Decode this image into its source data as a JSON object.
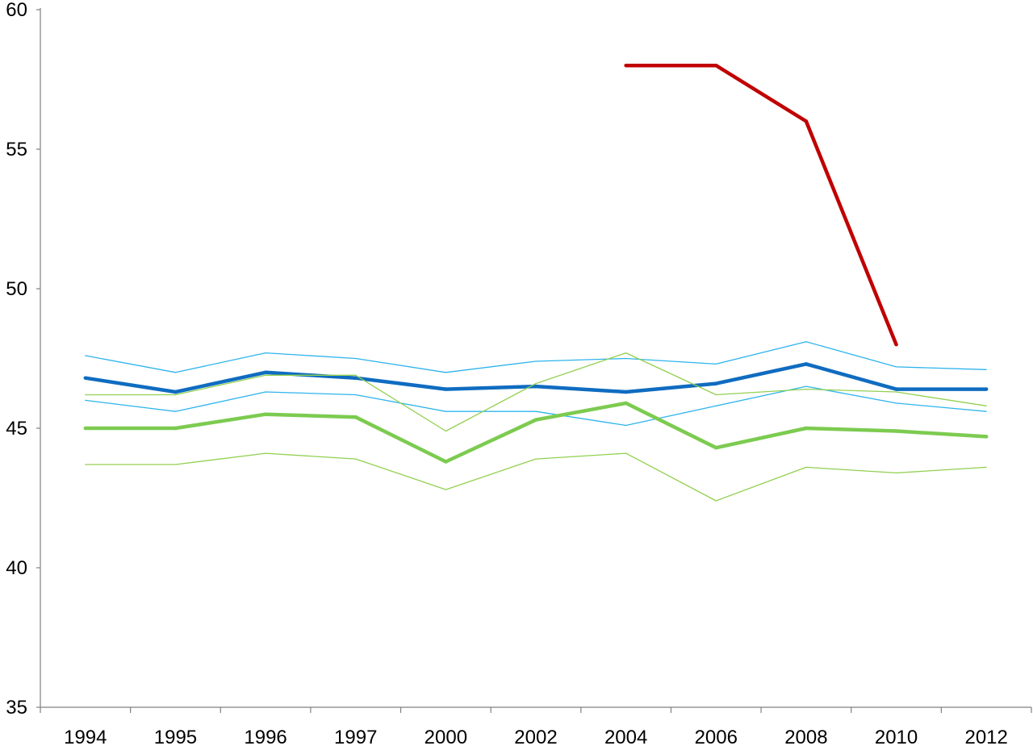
{
  "chart_data": {
    "type": "line",
    "title": "",
    "xlabel": "",
    "ylabel": "",
    "categories": [
      "1994",
      "1995",
      "1996",
      "1997",
      "2000",
      "2002",
      "2004",
      "2006",
      "2008",
      "2010",
      "2012"
    ],
    "ylim": [
      35,
      60
    ],
    "yticks": [
      35,
      40,
      45,
      50,
      55,
      60
    ],
    "grid": false,
    "legend": "none",
    "series": [
      {
        "color": "#2EB4EC",
        "style": "thin",
        "values": [
          47.6,
          47.0,
          47.7,
          47.5,
          47.0,
          47.4,
          47.5,
          47.3,
          48.1,
          47.2,
          47.1
        ]
      },
      {
        "color": "#2EB4EC",
        "style": "thin",
        "values": [
          46.0,
          45.6,
          46.3,
          46.2,
          45.6,
          45.6,
          45.1,
          45.8,
          46.5,
          45.9,
          45.6
        ]
      },
      {
        "color": "#0F6CC0",
        "style": "thick",
        "values": [
          46.8,
          46.3,
          47.0,
          46.8,
          46.4,
          46.5,
          46.3,
          46.6,
          47.3,
          46.4,
          46.4
        ]
      },
      {
        "color": "#92D050",
        "style": "thin",
        "values": [
          46.2,
          46.2,
          46.9,
          46.9,
          44.9,
          46.6,
          47.7,
          46.2,
          46.4,
          46.3,
          45.8
        ]
      },
      {
        "color": "#92D050",
        "style": "thin",
        "values": [
          43.7,
          43.7,
          44.1,
          43.9,
          42.8,
          43.9,
          44.1,
          42.4,
          43.6,
          43.4,
          43.6
        ]
      },
      {
        "color": "#7CCB50",
        "style": "thick",
        "values": [
          45.0,
          45.0,
          45.5,
          45.4,
          43.8,
          45.3,
          45.9,
          44.3,
          45.0,
          44.9,
          44.7
        ]
      },
      {
        "color": "#C00000",
        "style": "thick",
        "values": [
          null,
          null,
          null,
          null,
          null,
          null,
          58.0,
          58.0,
          56.0,
          48.0,
          null
        ]
      }
    ]
  }
}
